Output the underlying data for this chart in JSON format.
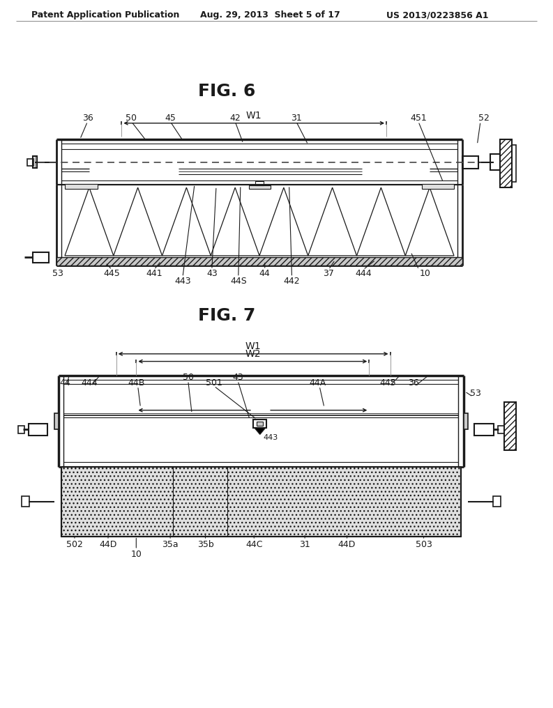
{
  "background_color": "#ffffff",
  "header_left": "Patent Application Publication",
  "header_center": "Aug. 29, 2013  Sheet 5 of 17",
  "header_right": "US 2013/0223856 A1",
  "fig6_title": "FIG. 6",
  "fig7_title": "FIG. 7",
  "line_color": "#1a1a1a",
  "text_color": "#1a1a1a",
  "dashed_color": "#555555"
}
